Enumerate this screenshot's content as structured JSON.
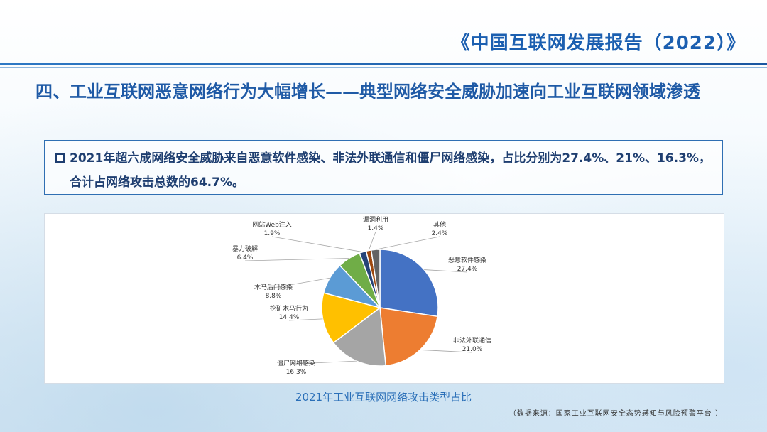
{
  "header": {
    "report_title": "《中国互联网发展报告（2022）》"
  },
  "section": {
    "title": "四、工业互联网恶意网络行为大幅增长——典型网络安全威胁加速向工业互联网领域渗透"
  },
  "summary": {
    "text": "2021年超六成网络安全威胁来自恶意软件感染、非法外联通信和僵尸网络感染，占比分别为27.4%、21%、16.3%，合计占网络攻击总数的64.7%。"
  },
  "chart_data": {
    "type": "pie",
    "title": "2021年工业互联网网络攻击类型占比",
    "slices": [
      {
        "label": "恶意软件感染",
        "value": 27.4,
        "value_label": "27.4%",
        "color": "#4472c4"
      },
      {
        "label": "非法外联通信",
        "value": 21.0,
        "value_label": "21.0%",
        "color": "#ed7d31"
      },
      {
        "label": "僵尸网络感染",
        "value": 16.3,
        "value_label": "16.3%",
        "color": "#a5a5a5"
      },
      {
        "label": "挖矿木马行为",
        "value": 14.4,
        "value_label": "14.4%",
        "color": "#ffc000"
      },
      {
        "label": "木马后门感染",
        "value": 8.8,
        "value_label": "8.8%",
        "color": "#5b9bd5"
      },
      {
        "label": "暴力破解",
        "value": 6.4,
        "value_label": "6.4%",
        "color": "#70ad47"
      },
      {
        "label": "网站Web注入",
        "value": 1.9,
        "value_label": "1.9%",
        "color": "#264478"
      },
      {
        "label": "漏洞利用",
        "value": 1.4,
        "value_label": "1.4%",
        "color": "#9e480e"
      },
      {
        "label": "其他",
        "value": 2.4,
        "value_label": "2.4%",
        "color": "#636363"
      }
    ],
    "start_angle_deg": 0,
    "direction": "clockwise",
    "legend": "none"
  },
  "footer": {
    "source_note": "（数据来源：国家工业互联网安全态势感知与风险预警平台 ）"
  }
}
